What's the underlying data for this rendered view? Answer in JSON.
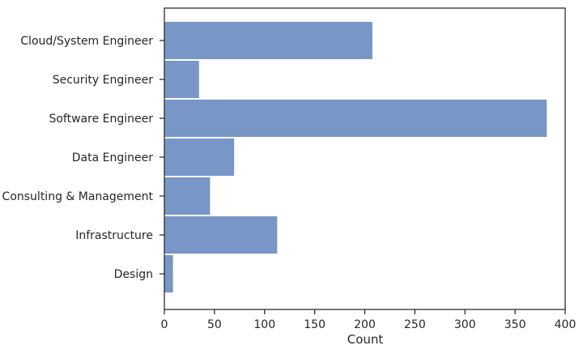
{
  "chart_data": {
    "type": "bar",
    "orientation": "horizontal",
    "title": "",
    "xlabel": "Count",
    "ylabel": "",
    "categories": [
      "Cloud/System Engineer",
      "Security Engineer",
      "Software Engineer",
      "Data Engineer",
      "Consulting & Management",
      "Infrastructure",
      "Design"
    ],
    "values": [
      208,
      35,
      382,
      70,
      46,
      113,
      9
    ],
    "xlim": [
      0,
      400
    ],
    "xticks": [
      0,
      50,
      100,
      150,
      200,
      250,
      300,
      350,
      400
    ],
    "grid": false,
    "legend": "none",
    "bar_color": "#7896c6",
    "bar_edge_color": "#ffffff",
    "axis_color": "#262626"
  }
}
